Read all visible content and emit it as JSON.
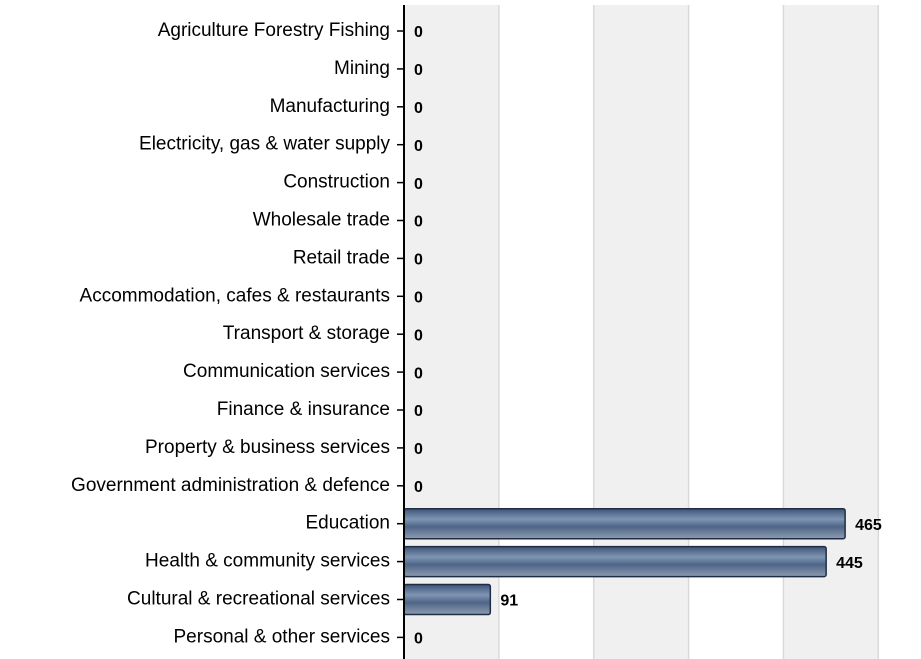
{
  "chart_data": {
    "type": "barh",
    "categories": [
      "Agriculture Forestry Fishing",
      "Mining",
      "Manufacturing",
      "Electricity, gas & water supply",
      "Construction",
      "Wholesale trade",
      "Retail trade",
      "Accommodation, cafes & restaurants",
      "Transport & storage",
      "Communication services",
      "Finance & insurance",
      "Property & business services",
      "Government administration & defence",
      "Education",
      "Health & community services",
      "Cultural & recreational services",
      "Personal & other services"
    ],
    "values": [
      0,
      0,
      0,
      0,
      0,
      0,
      0,
      0,
      0,
      0,
      0,
      0,
      0,
      465,
      445,
      91,
      0
    ],
    "color": "#5a7090",
    "xlim": [
      0,
      545
    ],
    "xticks": [
      0,
      100,
      200,
      300,
      400,
      500
    ],
    "grid": true
  }
}
